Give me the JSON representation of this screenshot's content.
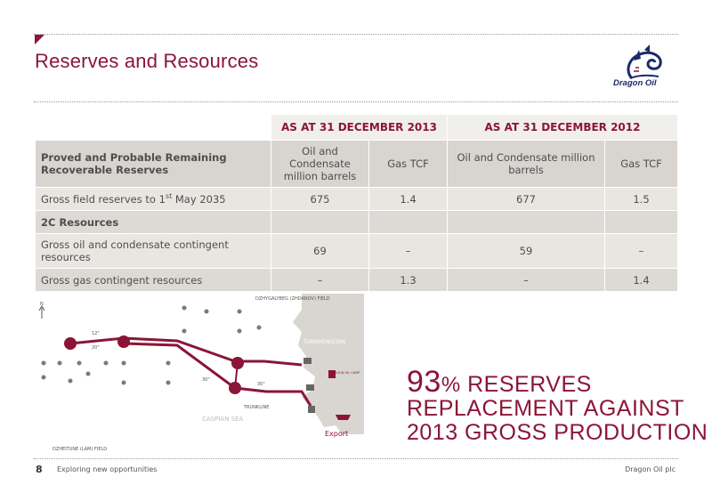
{
  "page": {
    "title": "Reserves and Resources",
    "logo_text": "Dragon Oil",
    "page_number": "8",
    "footer_left": "Exploring new opportunities",
    "footer_right": "Dragon Oil plc"
  },
  "table": {
    "period_headers": [
      "AS AT 31 DECEMBER 2013",
      "AS AT 31 DECEMBER 2012"
    ],
    "row_header": "Proved and Probable Remaining Recoverable Reserves",
    "column_units": [
      "Oil and Condensate million barrels",
      "Gas TCF",
      "Oil and Condensate million barrels",
      "Gas TCF"
    ],
    "rows": [
      {
        "label": "Gross field reserves to 1",
        "sup": "st",
        "label_suffix": " May 2035",
        "values": [
          "675",
          "1.4",
          "677",
          "1.5"
        ]
      },
      {
        "label": "2C Resources",
        "values": [
          "",
          "",
          "",
          ""
        ]
      },
      {
        "label": "Gross oil and condensate contingent resources",
        "values": [
          "69",
          "–",
          "59",
          "–"
        ]
      },
      {
        "label": "Gross gas contingent resources",
        "values": [
          "–",
          "1.3",
          "–",
          "1.4"
        ]
      }
    ]
  },
  "map": {
    "labels": {
      "field_north": "DZHYGALYBEG (ZHDANOV) FIELD",
      "country": "TURKMENISTAN",
      "sea": "CASPIAN SEA",
      "trunkline": "TRUNKLINE",
      "export": "Export",
      "field_south": "DZHEITUNE (LAM) FIELD",
      "camp": "DRAGON OIL CAMP",
      "north_marker": "N",
      "pipe_12": "12\"",
      "pipe_20": "20\"",
      "pipe_30a": "30\"",
      "pipe_30b": "30\""
    }
  },
  "highlight": {
    "percent": "93",
    "percent_sign": "%",
    "line1_rest": " RESERVES",
    "line2": "REPLACEMENT AGAINST",
    "line3": "2013 GROSS PRODUCTION"
  },
  "colors": {
    "accent": "#8b1538",
    "logo_blue": "#1b2a6b",
    "land": "#d9d5d0"
  }
}
